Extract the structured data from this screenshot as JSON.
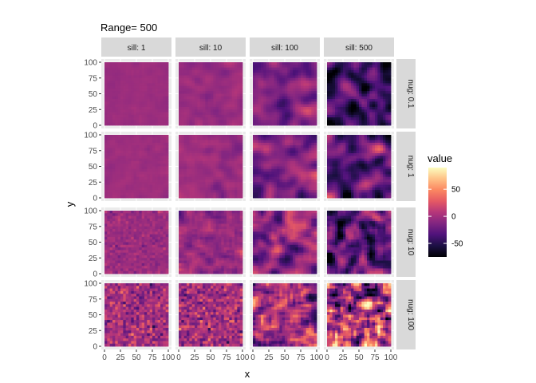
{
  "chart_data": {
    "type": "heatmap",
    "title": "Range=  500",
    "xlabel": "x",
    "ylabel": "y",
    "xlim": [
      0,
      100
    ],
    "ylim": [
      0,
      100
    ],
    "x_ticks": [
      "0",
      "25",
      "50",
      "75",
      "100"
    ],
    "y_ticks": [
      "0",
      "25",
      "50",
      "75",
      "100"
    ],
    "grid": true,
    "facet_cols": [
      "sill: 1",
      "sill: 10",
      "sill: 100",
      "sill: 500"
    ],
    "facet_rows": [
      "nug: 0.1",
      "nug: 1",
      "nug: 10",
      "nug: 100"
    ],
    "fill_scale": {
      "name": "value",
      "palette": "magma",
      "limits": [
        -75,
        90
      ],
      "breaks": [
        -50,
        0,
        50
      ],
      "break_labels": [
        "-50",
        "0",
        "50"
      ],
      "colors": [
        "#000004",
        "#1c1044",
        "#4f127b",
        "#812581",
        "#b5367a",
        "#e55964",
        "#fb8761",
        "#fec287",
        "#fcfdbf"
      ]
    },
    "panels": [
      {
        "row": "nug: 0.1",
        "col": "sill: 1",
        "mean": -3,
        "sd": 1.5,
        "smooth": 0.3,
        "patchy": 0.0
      },
      {
        "row": "nug: 0.1",
        "col": "sill: 10",
        "mean": -4,
        "sd": 4,
        "smooth": 0.6,
        "patchy": 0.3
      },
      {
        "row": "nug: 0.1",
        "col": "sill: 100",
        "mean": -15,
        "sd": 12,
        "smooth": 0.8,
        "patchy": 0.8
      },
      {
        "row": "nug: 0.1",
        "col": "sill: 500",
        "mean": -42,
        "sd": 18,
        "smooth": 0.8,
        "patchy": 0.8
      },
      {
        "row": "nug: 1",
        "col": "sill: 1",
        "mean": -2,
        "sd": 2,
        "smooth": 0.3,
        "patchy": 0.0
      },
      {
        "row": "nug: 1",
        "col": "sill: 10",
        "mean": -3,
        "sd": 5,
        "smooth": 0.5,
        "patchy": 0.3
      },
      {
        "row": "nug: 1",
        "col": "sill: 100",
        "mean": -14,
        "sd": 14,
        "smooth": 0.7,
        "patchy": 0.7
      },
      {
        "row": "nug: 1",
        "col": "sill: 500",
        "mean": -30,
        "sd": 20,
        "smooth": 0.7,
        "patchy": 0.7
      },
      {
        "row": "nug: 10",
        "col": "sill: 1",
        "mean": -3,
        "sd": 6,
        "smooth": 0.1,
        "patchy": 0.0
      },
      {
        "row": "nug: 10",
        "col": "sill: 10",
        "mean": -5,
        "sd": 8,
        "smooth": 0.2,
        "patchy": 0.2
      },
      {
        "row": "nug: 10",
        "col": "sill: 100",
        "mean": -8,
        "sd": 18,
        "smooth": 0.4,
        "patchy": 0.5
      },
      {
        "row": "nug: 10",
        "col": "sill: 500",
        "mean": -30,
        "sd": 22,
        "smooth": 0.5,
        "patchy": 0.5
      },
      {
        "row": "nug: 100",
        "col": "sill: 1",
        "mean": 0,
        "sd": 15,
        "smooth": 0.0,
        "patchy": 0.0
      },
      {
        "row": "nug: 100",
        "col": "sill: 10",
        "mean": 0,
        "sd": 16,
        "smooth": 0.0,
        "patchy": 0.0
      },
      {
        "row": "nug: 100",
        "col": "sill: 100",
        "mean": 0,
        "sd": 22,
        "smooth": 0.2,
        "patchy": 0.2
      },
      {
        "row": "nug: 100",
        "col": "sill: 500",
        "mean": 5,
        "sd": 35,
        "smooth": 0.3,
        "patchy": 0.3
      }
    ]
  }
}
